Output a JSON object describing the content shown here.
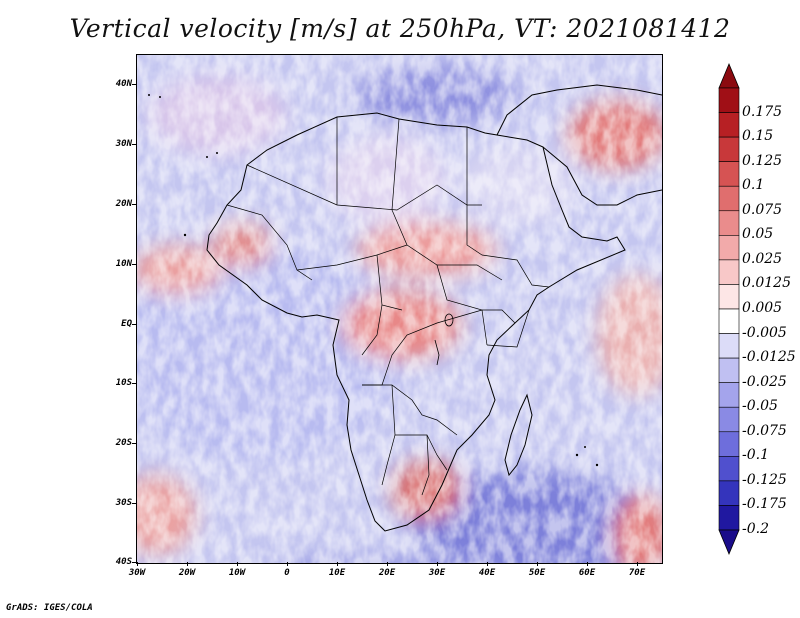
{
  "title": "Vertical velocity [m/s] at 250hPa, VT: 2021081412",
  "map": {
    "region": "Africa",
    "lat_ticks": [
      "40N",
      "30N",
      "20N",
      "10N",
      "EQ",
      "10S",
      "20S",
      "30S",
      "40S"
    ],
    "lon_ticks": [
      "30W",
      "20W",
      "10W",
      "0",
      "10E",
      "20E",
      "30E",
      "40E",
      "50E",
      "60E",
      "70E"
    ],
    "lat_range": [
      -40,
      45
    ],
    "lon_range": [
      -30,
      75
    ]
  },
  "colorbar": {
    "labels": [
      "0.175",
      "0.15",
      "0.125",
      "0.1",
      "0.075",
      "0.05",
      "0.025",
      "0.0125",
      "0.005",
      "-0.005",
      "-0.0125",
      "-0.025",
      "-0.05",
      "-0.075",
      "-0.1",
      "-0.125",
      "-0.175",
      "-0.2"
    ],
    "colors": [
      "#a00f16",
      "#b72024",
      "#c8383a",
      "#d65353",
      "#e06e6e",
      "#ea8c8c",
      "#f2aaaa",
      "#f8c8c8",
      "#fde6e6",
      "#ffffff",
      "#dcdcf8",
      "#c0c0f2",
      "#a4a4ec",
      "#8a8ae4",
      "#6e6edc",
      "#5050ce",
      "#3434bc",
      "#2018a0"
    ],
    "top_color": "#8b0a10",
    "bottom_color": "#1a0c8a"
  },
  "footer": "GrADS: IGES/COLA"
}
